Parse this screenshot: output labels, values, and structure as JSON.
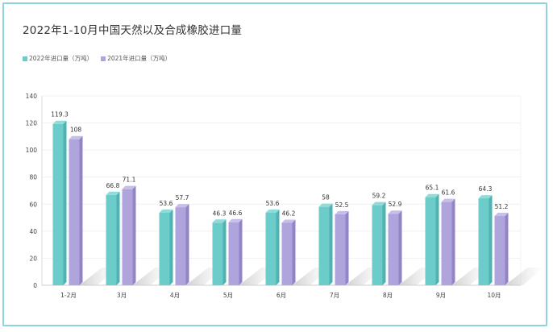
{
  "title": "2022年1-10月中国天然以及合成橡胶进口量",
  "legend": {
    "s1": "2022年进口量（万吨）",
    "s2": "2021年进口量（万吨）"
  },
  "colors": {
    "s1_front": "#6cccca",
    "s1_side": "#4fb3b1",
    "s1_top": "#8fdcda",
    "s2_front": "#b0a4dc",
    "s2_side": "#9384c8",
    "s2_top": "#c8bfe8",
    "frame": "#8fd3dc"
  },
  "chart_data": {
    "type": "bar",
    "title": "2022年1-10月中国天然以及合成橡胶进口量",
    "xlabel": "",
    "ylabel": "",
    "ylim": [
      0,
      140
    ],
    "yticks": [
      "0",
      "20",
      "40",
      "60",
      "80",
      "100",
      "120",
      "140"
    ],
    "categories": [
      "1-2月",
      "3月",
      "4月",
      "5月",
      "6月",
      "7月",
      "8月",
      "9月",
      "10月"
    ],
    "series": [
      {
        "name": "2022年进口量（万吨）",
        "values": [
          119.3,
          66.8,
          53.6,
          46.3,
          53.6,
          58,
          59.2,
          65.1,
          64.3
        ],
        "labels": [
          "119.3",
          "66.8",
          "53.6",
          "46.3",
          "53.6",
          "58",
          "59.2",
          "65.1",
          "64.3"
        ]
      },
      {
        "name": "2021年进口量（万吨）",
        "values": [
          108,
          71.1,
          57.7,
          46.6,
          46.2,
          52.5,
          52.9,
          61.6,
          51.2
        ],
        "labels": [
          "108",
          "71.1",
          "57.7",
          "46.6",
          "46.2",
          "52.5",
          "52.9",
          "61.6",
          "51.2"
        ]
      }
    ],
    "legend_position": "top-left",
    "grid": true
  }
}
